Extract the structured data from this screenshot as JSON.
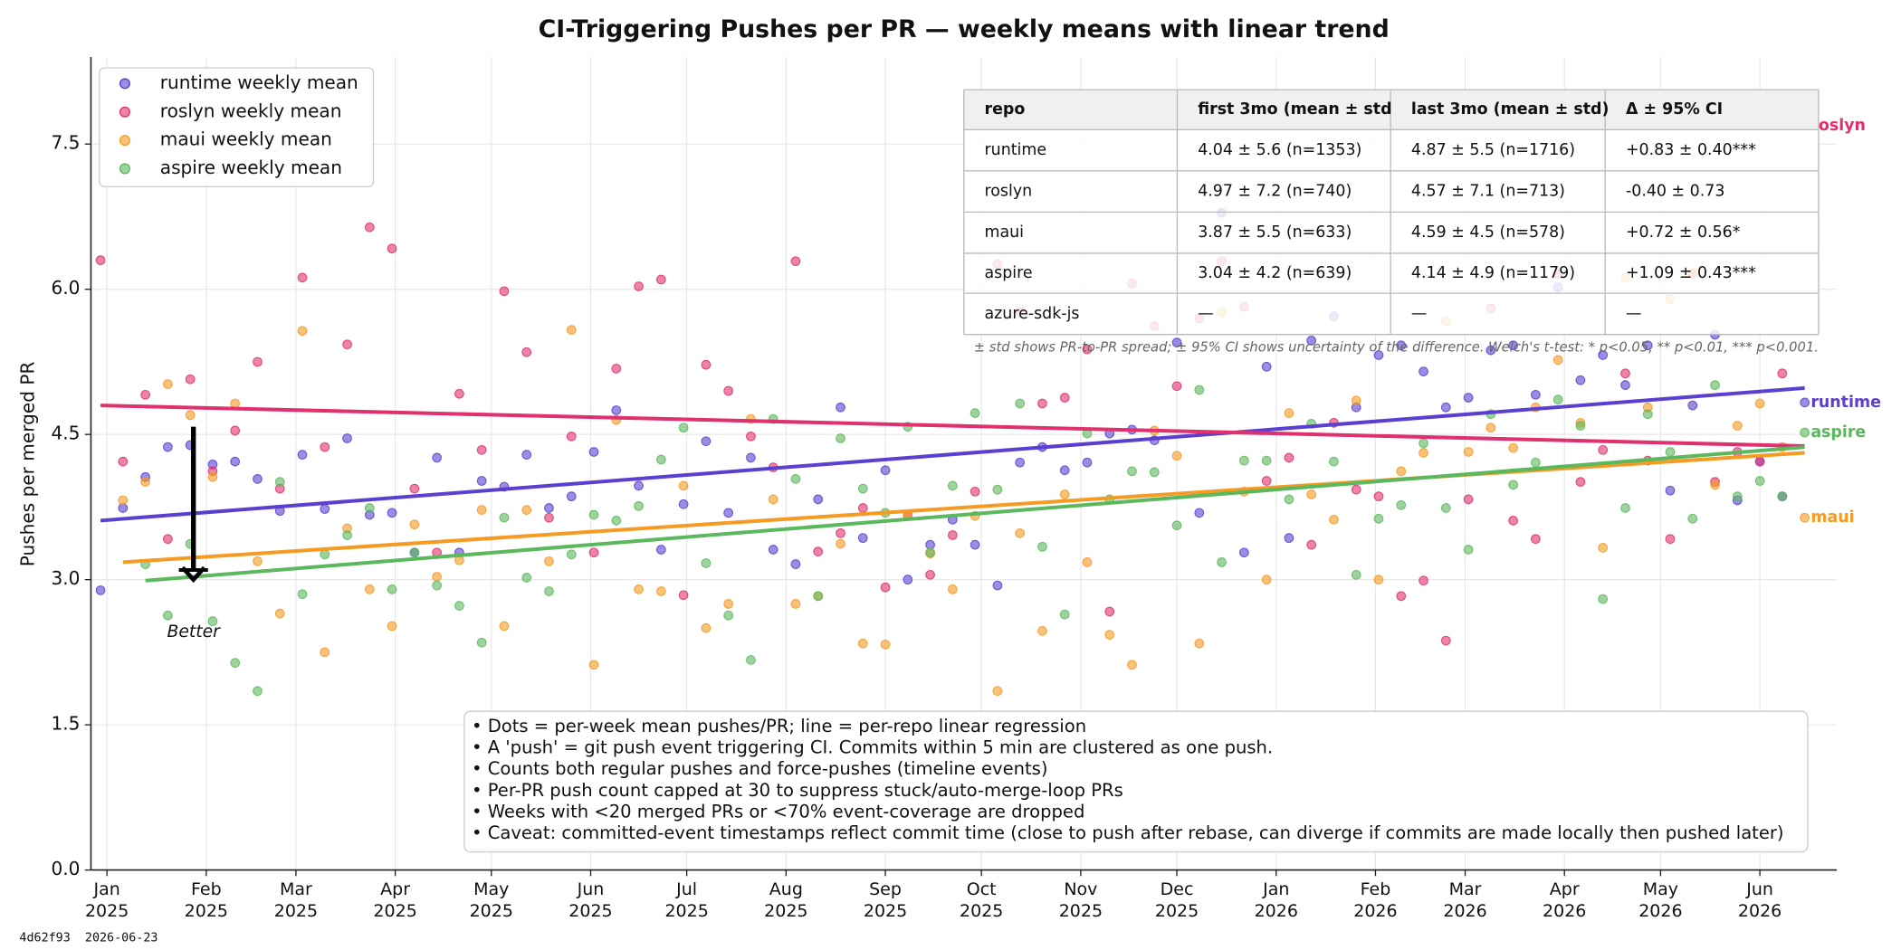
{
  "chart_data": {
    "type": "scatter",
    "title": "CI-Triggering Pushes per PR — weekly means with linear trend",
    "ylabel": "Pushes per merged PR",
    "xlim": [
      "2024-12-27",
      "2026-06-25"
    ],
    "ylim": [
      0,
      8.4
    ],
    "yticks": [
      {
        "value": 0,
        "label": "0.0"
      },
      {
        "value": 1.5,
        "label": "1.5"
      },
      {
        "value": 3,
        "label": "3.0"
      },
      {
        "value": 4.5,
        "label": "4.5"
      },
      {
        "value": 6,
        "label": "6.0"
      },
      {
        "value": 7.5,
        "label": "7.5"
      }
    ],
    "xticks": [
      {
        "value": "2025-01-01",
        "label": "Jan\n2025"
      },
      {
        "value": "2025-02-01",
        "label": "Feb\n2025"
      },
      {
        "value": "2025-03-01",
        "label": "Mar\n2025"
      },
      {
        "value": "2025-04-01",
        "label": "Apr\n2025"
      },
      {
        "value": "2025-05-01",
        "label": "May\n2025"
      },
      {
        "value": "2025-06-01",
        "label": "Jun\n2025"
      },
      {
        "value": "2025-07-01",
        "label": "Jul\n2025"
      },
      {
        "value": "2025-08-01",
        "label": "Aug\n2025"
      },
      {
        "value": "2025-09-01",
        "label": "Sep\n2025"
      },
      {
        "value": "2025-10-01",
        "label": "Oct\n2025"
      },
      {
        "value": "2025-11-01",
        "label": "Nov\n2025"
      },
      {
        "value": "2025-12-01",
        "label": "Dec\n2025"
      },
      {
        "value": "2026-01-01",
        "label": "Jan\n2026"
      },
      {
        "value": "2026-02-01",
        "label": "Feb\n2026"
      },
      {
        "value": "2026-03-01",
        "label": "Mar\n2026"
      },
      {
        "value": "2026-04-01",
        "label": "Apr\n2026"
      },
      {
        "value": "2026-05-01",
        "label": "May\n2026"
      },
      {
        "value": "2026-06-01",
        "label": "Jun\n2026"
      }
    ],
    "grid": true,
    "legend": "upper left",
    "x": [
      "2024-12-30",
      "2025-01-06",
      "2025-01-13",
      "2025-01-20",
      "2025-01-27",
      "2025-02-03",
      "2025-02-10",
      "2025-02-17",
      "2025-02-24",
      "2025-03-03",
      "2025-03-10",
      "2025-03-17",
      "2025-03-24",
      "2025-03-31",
      "2025-04-07",
      "2025-04-14",
      "2025-04-21",
      "2025-04-28",
      "2025-05-05",
      "2025-05-12",
      "2025-05-19",
      "2025-05-26",
      "2025-06-02",
      "2025-06-09",
      "2025-06-16",
      "2025-06-23",
      "2025-06-30",
      "2025-07-07",
      "2025-07-14",
      "2025-07-21",
      "2025-07-28",
      "2025-08-04",
      "2025-08-11",
      "2025-08-18",
      "2025-08-25",
      "2025-09-01",
      "2025-09-08",
      "2025-09-15",
      "2025-09-22",
      "2025-09-29",
      "2025-10-06",
      "2025-10-13",
      "2025-10-20",
      "2025-10-27",
      "2025-11-03",
      "2025-11-10",
      "2025-11-17",
      "2025-11-24",
      "2025-12-01",
      "2025-12-08",
      "2025-12-15",
      "2025-12-22",
      "2025-12-29",
      "2026-01-05",
      "2026-01-12",
      "2026-01-19",
      "2026-01-26",
      "2026-02-02",
      "2026-02-09",
      "2026-02-16",
      "2026-02-23",
      "2026-03-02",
      "2026-03-09",
      "2026-03-16",
      "2026-03-23",
      "2026-03-30",
      "2026-04-06",
      "2026-04-13",
      "2026-04-20",
      "2026-04-27",
      "2026-05-04",
      "2026-05-11",
      "2026-05-18",
      "2026-05-25",
      "2026-06-01",
      "2026-06-08",
      "2026-06-15"
    ],
    "series": [
      {
        "name": "runtime weekly mean",
        "label": "runtime",
        "color": "#5b3fd1",
        "trend": [
          3.61,
          4.98
        ],
        "values": [
          2.89,
          3.74,
          4.06,
          4.37,
          4.39,
          4.19,
          4.22,
          4.04,
          3.71,
          4.29,
          3.73,
          4.46,
          3.67,
          3.69,
          3.28,
          4.26,
          3.28,
          4.02,
          3.96,
          4.29,
          3.74,
          3.86,
          4.32,
          4.75,
          3.97,
          3.31,
          3.78,
          4.43,
          3.69,
          4.26,
          3.31,
          3.16,
          3.83,
          4.78,
          3.43,
          4.13,
          3.0,
          3.36,
          3.62,
          3.36,
          2.94,
          4.21,
          4.37,
          4.13,
          4.21,
          4.51,
          4.55,
          4.44,
          5.45,
          3.69,
          6.79,
          3.28,
          5.2,
          3.43,
          5.47,
          5.72,
          4.78,
          5.32,
          5.42,
          5.15,
          4.78,
          4.88,
          5.37,
          5.42,
          4.91,
          6.02,
          5.06,
          5.32,
          5.01,
          5.42,
          3.92,
          4.8,
          5.53,
          3.82,
          4.22,
          3.86,
          4.83
        ]
      },
      {
        "name": "roslyn weekly mean",
        "label": "roslyn",
        "color": "#e0306e",
        "trend": [
          4.8,
          4.38
        ],
        "values": [
          6.3,
          4.22,
          4.91,
          3.42,
          5.07,
          4.12,
          4.54,
          5.25,
          3.94,
          6.12,
          4.37,
          5.43,
          6.64,
          6.42,
          3.94,
          3.28,
          4.92,
          4.34,
          5.98,
          5.35,
          3.64,
          4.48,
          3.28,
          5.18,
          6.03,
          6.1,
          2.84,
          5.22,
          4.95,
          4.48,
          4.16,
          6.29,
          3.29,
          3.48,
          3.74,
          2.92,
          3.66,
          3.05,
          3.46,
          3.91,
          6.26,
          5.77,
          4.82,
          4.88,
          5.38,
          2.67,
          6.06,
          5.62,
          5.0,
          5.7,
          6.29,
          5.82,
          4.02,
          4.26,
          3.36,
          4.62,
          3.93,
          3.86,
          2.83,
          2.99,
          2.37,
          3.83,
          5.8,
          3.61,
          3.42,
          6.16,
          4.01,
          4.34,
          5.13,
          4.23,
          3.42,
          6.16,
          4.01,
          4.32,
          4.22,
          5.13,
          7.69
        ]
      },
      {
        "name": "maui weekly mean",
        "label": "maui",
        "color": "#f59a23",
        "trend": [
          3.18,
          4.31
        ],
        "values": [
          null,
          3.82,
          4.01,
          5.02,
          4.7,
          4.06,
          4.82,
          3.19,
          2.65,
          5.57,
          2.25,
          3.53,
          2.9,
          2.52,
          3.57,
          3.03,
          3.2,
          3.72,
          2.52,
          3.72,
          3.19,
          5.58,
          2.12,
          4.65,
          2.9,
          2.88,
          3.97,
          2.5,
          2.75,
          4.66,
          3.83,
          2.75,
          2.83,
          3.37,
          2.34,
          2.33,
          3.67,
          3.27,
          2.9,
          3.66,
          1.85,
          3.48,
          2.47,
          3.88,
          3.18,
          2.43,
          2.12,
          4.54,
          4.28,
          2.34,
          5.76,
          3.91,
          3.0,
          4.72,
          3.88,
          3.62,
          4.85,
          3.0,
          4.12,
          4.31,
          5.67,
          4.32,
          4.57,
          4.36,
          4.78,
          5.27,
          4.62,
          3.33,
          6.12,
          4.78,
          5.9,
          6.16,
          3.98,
          4.59,
          4.82,
          4.37,
          3.64
        ]
      },
      {
        "name": "aspire weekly mean",
        "label": "aspire",
        "color": "#5cb85c",
        "trend": [
          2.99,
          4.37
        ],
        "values": [
          null,
          null,
          3.16,
          2.63,
          3.37,
          2.57,
          2.14,
          1.85,
          4.01,
          2.85,
          3.26,
          3.46,
          3.74,
          2.9,
          3.28,
          2.94,
          2.73,
          2.35,
          3.64,
          3.02,
          2.88,
          3.26,
          3.67,
          3.61,
          3.76,
          4.24,
          4.57,
          3.17,
          2.63,
          2.17,
          4.66,
          4.04,
          2.83,
          4.46,
          3.94,
          3.69,
          4.58,
          3.28,
          3.97,
          4.72,
          3.93,
          4.82,
          3.34,
          2.64,
          4.51,
          3.83,
          4.12,
          4.11,
          3.56,
          4.96,
          3.18,
          4.23,
          4.23,
          3.83,
          4.61,
          4.22,
          3.05,
          3.63,
          3.77,
          4.41,
          3.74,
          3.31,
          4.71,
          3.98,
          4.21,
          4.86,
          4.59,
          2.8,
          3.74,
          4.71,
          4.32,
          3.63,
          5.01,
          3.86,
          4.02,
          3.86,
          4.52
        ]
      }
    ],
    "annotation": {
      "text": "Better",
      "x": "2025-01-28",
      "from": 4.58,
      "to": 3.05
    },
    "table": {
      "columns": [
        "repo",
        "first 3mo (mean ± std",
        "last 3mo (mean ± std)",
        "Δ ± 95% CI"
      ],
      "rows": [
        [
          "runtime",
          "4.04 ± 5.6 (n=1353)",
          "4.87 ± 5.5 (n=1716)",
          "+0.83 ± 0.40***"
        ],
        [
          "roslyn",
          "4.97 ± 7.2 (n=740)",
          "4.57 ± 7.1 (n=713)",
          "-0.40 ± 0.73"
        ],
        [
          "maui",
          "3.87 ± 5.5 (n=633)",
          "4.59 ± 4.5 (n=578)",
          "+0.72 ± 0.56*"
        ],
        [
          "aspire",
          "3.04 ± 4.2 (n=639)",
          "4.14 ± 4.9 (n=1179)",
          "+1.09 ± 0.43***"
        ],
        [
          "azure-sdk-js",
          "—",
          "—",
          "—"
        ]
      ],
      "note": "± std shows PR-to-PR spread; ± 95% CI shows uncertainty of the difference. Welch's t-test: * p<0.05, ** p<0.01, *** p<0.001."
    },
    "notes": [
      "• Dots = per-week mean pushes/PR; line = per-repo linear regression",
      "• A 'push' = git push event triggering CI. Commits within 5 min are clustered as one push.",
      "• Counts both regular pushes and force-pushes (timeline events)",
      "• Per-PR push count capped at 30 to suppress stuck/auto-merge-loop PRs",
      "• Weeks with <20 merged PRs or <70% event-coverage are dropped",
      "• Caveat: committed-event timestamps reflect commit time (close to push after rebase, can diverge if commits are made locally then pushed later)"
    ],
    "footer": "4d62f93  2026-06-23"
  }
}
